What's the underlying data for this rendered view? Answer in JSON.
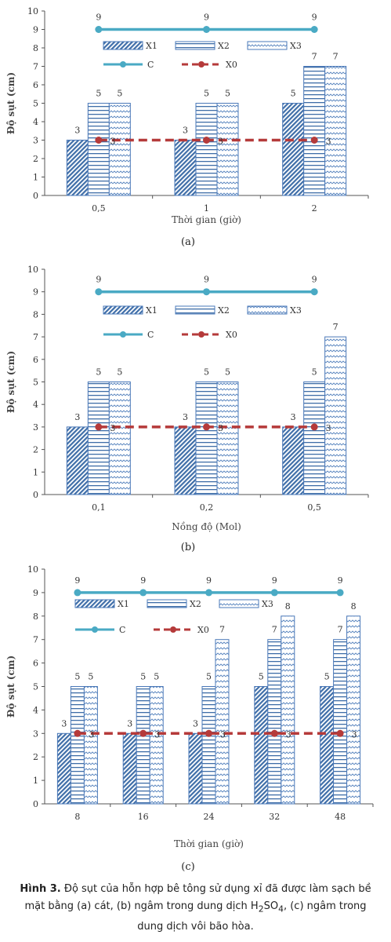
{
  "chart_data": [
    {
      "type": "bar",
      "xlabel": "Thời gian (giờ)",
      "ylabel": "Độ sụt (cm)",
      "ylim": [
        0,
        10
      ],
      "yticks": [
        0,
        1,
        2,
        3,
        4,
        5,
        6,
        7,
        8,
        9,
        10
      ],
      "categories": [
        "0,5",
        "1",
        "2"
      ],
      "series": [
        {
          "name": "X1",
          "kind": "bar",
          "pattern": "diag",
          "values": [
            3,
            3,
            5
          ]
        },
        {
          "name": "X2",
          "kind": "bar",
          "pattern": "horiz",
          "values": [
            5,
            5,
            7
          ]
        },
        {
          "name": "X3",
          "kind": "bar",
          "pattern": "wave",
          "values": [
            5,
            5,
            7
          ]
        },
        {
          "name": "C",
          "kind": "line",
          "style": "solid",
          "values": [
            9,
            9,
            9
          ]
        },
        {
          "name": "X0",
          "kind": "line",
          "style": "dashed",
          "values": [
            3,
            3,
            3
          ]
        }
      ],
      "legend": "top-inside",
      "grid": false,
      "sublabel": "(a)"
    },
    {
      "type": "bar",
      "xlabel": "Nồng độ (Mol)",
      "ylabel": "Độ sụt (cm)",
      "ylim": [
        0,
        10
      ],
      "yticks": [
        0,
        1,
        2,
        3,
        4,
        5,
        6,
        7,
        8,
        9,
        10
      ],
      "categories": [
        "0,1",
        "0,2",
        "0,5"
      ],
      "series": [
        {
          "name": "X1",
          "kind": "bar",
          "pattern": "diag",
          "values": [
            3,
            3,
            3
          ]
        },
        {
          "name": "X2",
          "kind": "bar",
          "pattern": "horiz",
          "values": [
            5,
            5,
            5
          ]
        },
        {
          "name": "X3",
          "kind": "bar",
          "pattern": "wave",
          "values": [
            5,
            5,
            7
          ]
        },
        {
          "name": "C",
          "kind": "line",
          "style": "solid",
          "values": [
            9,
            9,
            9
          ]
        },
        {
          "name": "X0",
          "kind": "line",
          "style": "dashed",
          "values": [
            3,
            3,
            3
          ]
        }
      ],
      "legend": "top-inside",
      "grid": false,
      "sublabel": "(b)"
    },
    {
      "type": "bar",
      "xlabel": "Thời gian (giờ)",
      "ylabel": "Độ sụt (cm)",
      "ylim": [
        0,
        10
      ],
      "yticks": [
        0,
        1,
        2,
        3,
        4,
        5,
        6,
        7,
        8,
        9,
        10
      ],
      "categories": [
        "8",
        "16",
        "24",
        "32",
        "48"
      ],
      "series": [
        {
          "name": "X1",
          "kind": "bar",
          "pattern": "diag",
          "values": [
            3,
            3,
            3,
            5,
            5
          ]
        },
        {
          "name": "X2",
          "kind": "bar",
          "pattern": "horiz",
          "values": [
            5,
            5,
            5,
            7,
            7
          ]
        },
        {
          "name": "X3",
          "kind": "bar",
          "pattern": "wave",
          "values": [
            5,
            5,
            7,
            8,
            8
          ]
        },
        {
          "name": "C",
          "kind": "line",
          "style": "solid",
          "values": [
            9,
            9,
            9,
            9,
            9
          ]
        },
        {
          "name": "X0",
          "kind": "line",
          "style": "dashed",
          "values": [
            3,
            3,
            3,
            3,
            3
          ]
        }
      ],
      "legend": "top-inside",
      "grid": false,
      "sublabel": "(c)"
    }
  ],
  "colors": {
    "bar_edge": "#4a78b8",
    "line_c": "#4aaac4",
    "line_x0": "#b53a3a",
    "axis": "#555555"
  },
  "caption": {
    "label": "Hình 3.",
    "line1_rest": " Độ sụt của hỗn hợp bê tông sử dụng xỉ đã được làm sạch bề",
    "line2_a": "mặt bằng (a) cát, (b) ngâm trong dung dịch H",
    "line2_sub1": "2",
    "line2_b": "SO",
    "line2_sub2": "4",
    "line2_c": ", (c) ngâm trong",
    "line3": "dung dịch vôi bão hòa."
  }
}
